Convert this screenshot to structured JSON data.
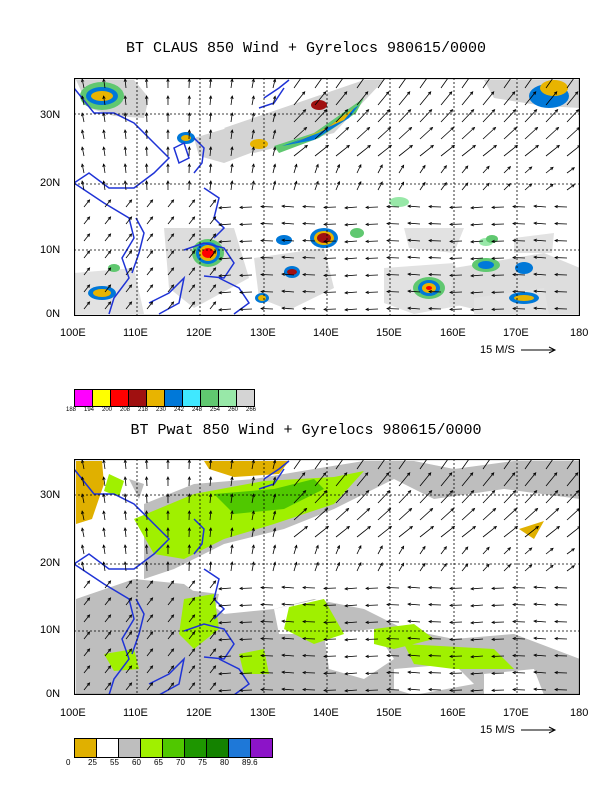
{
  "panels": [
    {
      "title": "BT CLAUS 850 Wind + Gyrelocs 980615/0000",
      "x_ticks": [
        "100E",
        "110E",
        "120E",
        "130E",
        "140E",
        "150E",
        "160E",
        "170E",
        "180"
      ],
      "y_ticks": [
        "0N",
        "10N",
        "20N",
        "30N"
      ],
      "scale_label": "15 M/S",
      "legend": {
        "labels": [
          "188",
          "194",
          "200",
          "208",
          "218",
          "230",
          "242",
          "248",
          "254",
          "260",
          "266"
        ],
        "colors": [
          "#ff00ff",
          "#ffff00",
          "#ff0000",
          "#a01010",
          "#e8b400",
          "#0078d8",
          "#40e8ff",
          "#60c870",
          "#98e8a8",
          "#d4d4d4"
        ]
      }
    },
    {
      "title": "BT Pwat 850 Wind + Gyrelocs 980615/0000",
      "x_ticks": [
        "100E",
        "110E",
        "120E",
        "130E",
        "140E",
        "150E",
        "160E",
        "170E",
        "180"
      ],
      "y_ticks": [
        "0N",
        "10N",
        "20N",
        "30N"
      ],
      "scale_label": "15 M/S",
      "legend": {
        "labels": [
          "0",
          "25",
          "55",
          "60",
          "65",
          "70",
          "75",
          "80",
          "89.6"
        ],
        "colors": [
          "#e0b000",
          "#ffffff",
          "#bebebe",
          "#a0f000",
          "#50c800",
          "#1e9600",
          "#148200",
          "#1e78d8",
          "#8c14c8"
        ]
      }
    }
  ]
}
